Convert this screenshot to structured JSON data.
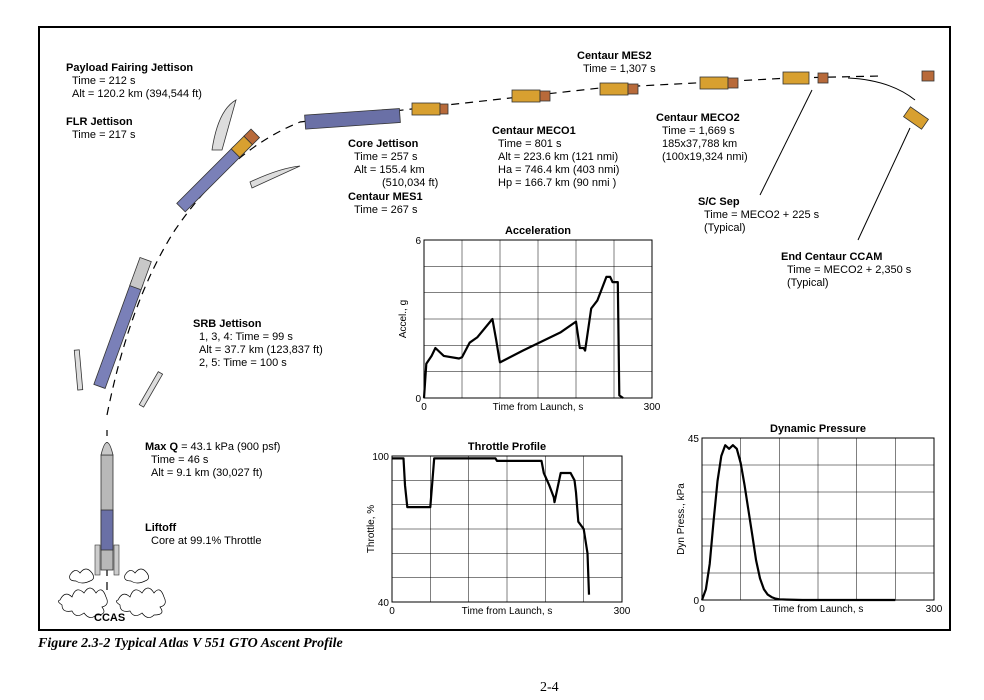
{
  "events": {
    "payload_fairing": {
      "title": "Payload Fairing Jettison",
      "lines": [
        "Time = 212 s",
        "Alt = 120.2 km (394,544 ft)"
      ]
    },
    "flr": {
      "title": "FLR Jettison",
      "lines": [
        "Time = 217 s"
      ]
    },
    "core": {
      "title": "Core Jettison",
      "lines": [
        "Time = 257 s",
        "Alt = 155.4 km",
        "(510,034 ft)"
      ]
    },
    "centaur_mes1": {
      "title": "Centaur MES1",
      "lines": [
        "Time = 267 s"
      ]
    },
    "centaur_meco1": {
      "title": "Centaur MECO1",
      "lines": [
        "Time = 801 s",
        "Alt = 223.6 km (121 nmi)",
        "Ha = 746.4 km (403 nmi)",
        "Hp = 166.7 km (90 nmi )"
      ]
    },
    "centaur_mes2": {
      "title": "Centaur MES2",
      "lines": [
        "Time = 1,307 s"
      ]
    },
    "centaur_meco2": {
      "title": "Centaur MECO2",
      "lines": [
        "Time = 1,669 s",
        "185x37,788 km",
        "(100x19,324 nmi)"
      ]
    },
    "sc_sep": {
      "title": "S/C Sep",
      "lines": [
        "Time = MECO2 + 225 s",
        "(Typical)"
      ]
    },
    "end_ccam": {
      "title": "End Centaur CCAM",
      "lines": [
        "Time = MECO2 + 2,350 s",
        "(Typical)"
      ]
    },
    "srb": {
      "title": "SRB Jettison",
      "lines": [
        "1, 3, 4:  Time = 99 s",
        "Alt = 37.7 km (123,837 ft)",
        "2, 5:  Time = 100 s"
      ]
    },
    "maxq": {
      "title": "Max Q",
      "title_suffix": " = 43.1 kPa (900 psf)",
      "lines": [
        "Time = 46 s",
        "Alt = 9.1 km (30,027 ft)"
      ]
    },
    "liftoff": {
      "title": "Liftoff",
      "lines": [
        "Core at 99.1% Throttle"
      ]
    },
    "ccas": "CCAS"
  },
  "chart_data": [
    {
      "type": "line",
      "title": "Acceleration",
      "xlabel": "Time from Launch, s",
      "ylabel": "Accel., g",
      "xlim": [
        0,
        300
      ],
      "ylim": [
        0,
        6
      ],
      "xticks": [
        "0",
        "300"
      ],
      "yticks": [
        "0",
        "6"
      ],
      "grid": true,
      "series": [
        {
          "x": [
            0,
            3,
            10,
            15,
            26,
            46,
            50,
            60,
            70,
            90,
            95,
            99,
            100,
            130,
            180,
            200,
            205,
            210,
            212,
            220,
            228,
            240,
            245,
            248,
            255,
            257,
            262
          ],
          "y": [
            0,
            1.3,
            1.6,
            1.9,
            1.6,
            1.5,
            1.55,
            2.1,
            2.3,
            3.0,
            2.2,
            1.5,
            1.35,
            1.8,
            2.5,
            2.9,
            1.9,
            1.9,
            1.8,
            3.4,
            3.7,
            4.6,
            4.6,
            4.4,
            4.4,
            0.1,
            0
          ]
        }
      ]
    },
    {
      "type": "line",
      "title": "Throttle Profile",
      "xlabel": "Time from Launch, s",
      "ylabel": "Throttle, %",
      "xlim": [
        0,
        300
      ],
      "ylim": [
        40,
        100
      ],
      "xticks": [
        "0",
        "300"
      ],
      "yticks": [
        "40",
        "100"
      ],
      "grid": true,
      "series": [
        {
          "x": [
            0,
            15,
            17,
            20,
            50,
            55,
            135,
            137,
            195,
            198,
            205,
            211,
            212,
            220,
            233,
            238,
            240,
            243,
            250,
            255,
            257
          ],
          "y": [
            99,
            99,
            88,
            79,
            79,
            99,
            99,
            98,
            98,
            93,
            88,
            83,
            81,
            93,
            93,
            90,
            85,
            73,
            70,
            60,
            43
          ]
        }
      ]
    },
    {
      "type": "area",
      "title": "Dynamic Pressure",
      "xlabel": "Time from Launch, s",
      "ylabel": "Dyn Press., kPa",
      "xlim": [
        0,
        300
      ],
      "ylim": [
        0,
        45
      ],
      "xticks": [
        "0",
        "300"
      ],
      "yticks": [
        "0",
        "45"
      ],
      "grid": true,
      "series": [
        {
          "x": [
            0,
            5,
            10,
            15,
            20,
            25,
            30,
            35,
            40,
            45,
            50,
            55,
            60,
            65,
            70,
            75,
            80,
            85,
            90,
            95,
            100,
            110,
            130,
            160,
            190,
            250
          ],
          "y": [
            0,
            3,
            10,
            22,
            33,
            40,
            43,
            42,
            43,
            42,
            38,
            32,
            25,
            18,
            11,
            6,
            3,
            1.5,
            0.8,
            0.4,
            0.2,
            0.1,
            0,
            0,
            0,
            0
          ]
        }
      ]
    }
  ],
  "caption": "Figure 2.3-2 Typical Atlas V 551 GTO Ascent Profile",
  "page_number": "2-4"
}
